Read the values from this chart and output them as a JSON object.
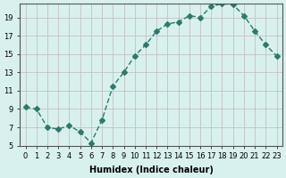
{
  "x": [
    0,
    1,
    2,
    3,
    4,
    5,
    6,
    7,
    8,
    9,
    10,
    11,
    12,
    13,
    14,
    15,
    16,
    17,
    18,
    19,
    20,
    21,
    22,
    23
  ],
  "y": [
    9.2,
    9.0,
    7.0,
    6.8,
    7.2,
    6.5,
    5.3,
    7.8,
    11.5,
    13.0,
    14.8,
    16.0,
    17.5,
    18.3,
    18.5,
    19.2,
    19.0,
    20.2,
    20.5,
    20.4,
    19.2,
    17.5,
    16.0,
    14.8
  ],
  "line_color": "#2d7a6a",
  "marker": "D",
  "marker_size": 3,
  "bg_color": "#d8f0ee",
  "grid_color": "#c0b8b8",
  "xlabel": "Humidex (Indice chaleur)",
  "ylabel": "",
  "ylim": [
    5,
    20.5
  ],
  "xlim": [
    -0.5,
    23.5
  ],
  "yticks": [
    5,
    7,
    9,
    11,
    13,
    15,
    17,
    19
  ],
  "xticks": [
    0,
    1,
    2,
    3,
    4,
    5,
    6,
    7,
    8,
    9,
    10,
    11,
    12,
    13,
    14,
    15,
    16,
    17,
    18,
    19,
    20,
    21,
    22,
    23
  ],
  "title_fontsize": 7,
  "label_fontsize": 7,
  "tick_fontsize": 6
}
